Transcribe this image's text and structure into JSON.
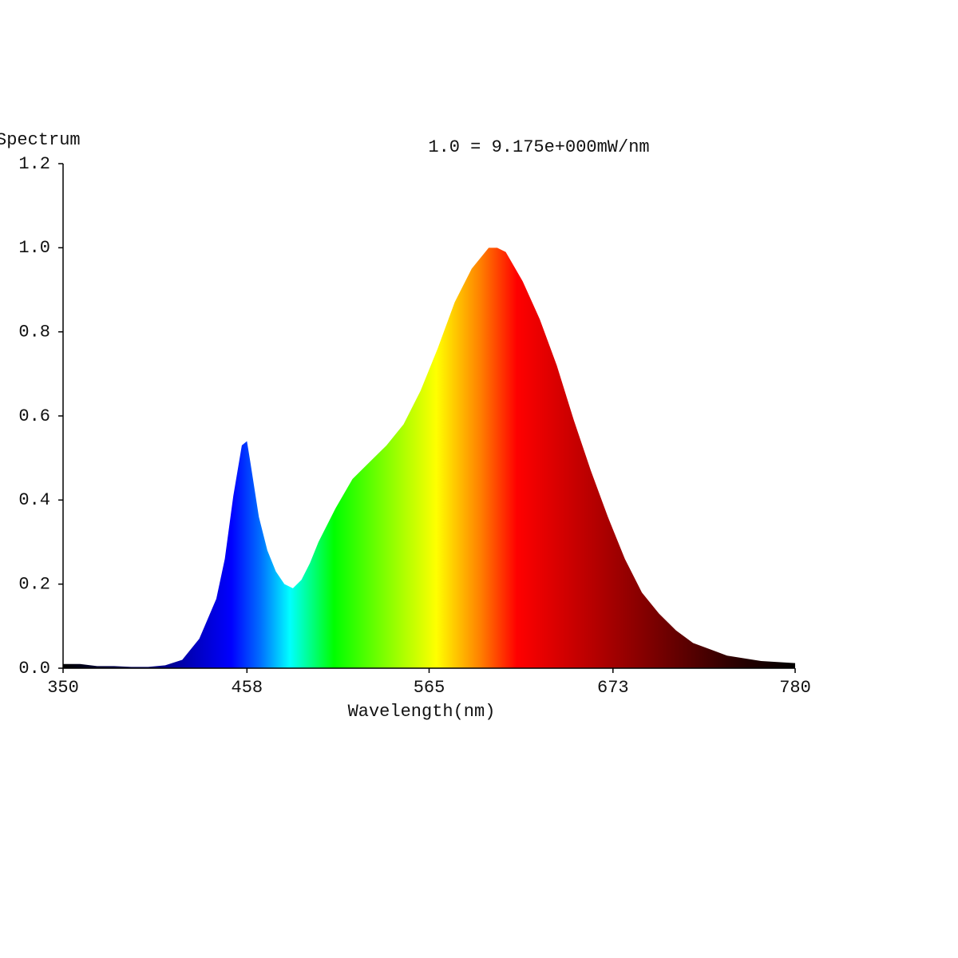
{
  "chart_data": {
    "type": "area",
    "title": "1.0 = 9.175e+000mW/nm",
    "y_label": "Spectrum",
    "x_label": "Wavelength(nm)",
    "x": [
      350,
      360,
      370,
      380,
      390,
      400,
      410,
      420,
      430,
      440,
      445,
      450,
      455,
      458,
      460,
      465,
      470,
      475,
      480,
      485,
      490,
      495,
      500,
      510,
      520,
      530,
      540,
      550,
      560,
      570,
      580,
      590,
      600,
      605,
      610,
      620,
      630,
      640,
      650,
      660,
      670,
      680,
      690,
      700,
      710,
      720,
      740,
      760,
      780
    ],
    "y": [
      0.01,
      0.01,
      0.005,
      0.005,
      0.003,
      0.003,
      0.007,
      0.02,
      0.07,
      0.165,
      0.26,
      0.41,
      0.53,
      0.54,
      0.49,
      0.36,
      0.28,
      0.23,
      0.2,
      0.19,
      0.21,
      0.25,
      0.3,
      0.38,
      0.45,
      0.49,
      0.53,
      0.58,
      0.66,
      0.76,
      0.87,
      0.95,
      1.0,
      1.0,
      0.99,
      0.92,
      0.83,
      0.72,
      0.59,
      0.47,
      0.36,
      0.26,
      0.18,
      0.13,
      0.09,
      0.06,
      0.03,
      0.017,
      0.012
    ],
    "xlim": [
      350,
      780
    ],
    "xticks": [
      350,
      458,
      565,
      673,
      780
    ],
    "ylim": [
      0,
      1.2
    ],
    "yticks": [
      {
        "value": 0,
        "label": "0.0"
      },
      0.2,
      0.4,
      0.6,
      0.8,
      {
        "value": 1,
        "label": "1.0"
      },
      1.2
    ]
  }
}
